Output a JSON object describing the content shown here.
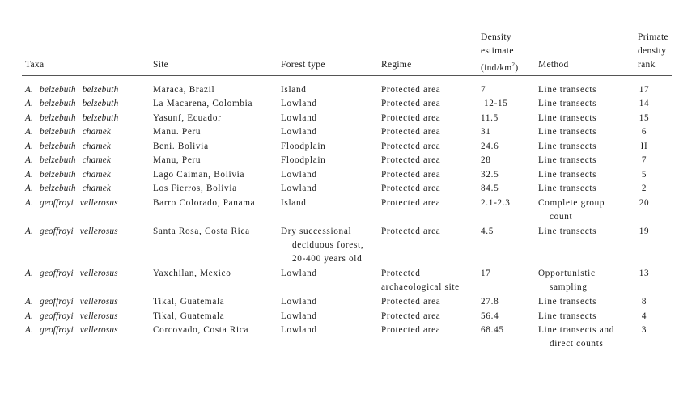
{
  "headers": {
    "taxa": "Taxa",
    "site": "Site",
    "forest_type": "Forest type",
    "regime": "Regime",
    "density_line1": "Density",
    "density_line2": "estimate",
    "density_line3_pre": "(ind/km",
    "density_line3_sup": "2",
    "density_line3_post": ")",
    "method": "Method",
    "rank_line1": "Primate",
    "rank_line2": "density",
    "rank_line3": "rank"
  },
  "rows": [
    {
      "taxa": "A.  belzebuth  belzebuth",
      "site": "Maraca, Brazil",
      "forest": [
        "Island"
      ],
      "regime": [
        "Protected area"
      ],
      "density": "7",
      "method": [
        "Line transects"
      ],
      "rank": "17"
    },
    {
      "taxa": "A.  belzebuth  belzebuth",
      "site": "La Macarena, Colombia",
      "forest": [
        "Lowland"
      ],
      "regime": [
        "Protected area"
      ],
      "density": "12-15",
      "method": [
        "Line transects"
      ],
      "rank": "14"
    },
    {
      "taxa": "A.  belzebuth  belzebuth",
      "site": "Yasunf, Ecuador",
      "forest": [
        "Lowland"
      ],
      "regime": [
        "Protected area"
      ],
      "density": "11.5",
      "method": [
        "Line transects"
      ],
      "rank": "15"
    },
    {
      "taxa": "A.  belzebuth  chamek",
      "site": "Manu. Peru",
      "forest": [
        "Lowland"
      ],
      "regime": [
        "Protected area"
      ],
      "density": "31",
      "method": [
        "Line transects"
      ],
      "rank": "6"
    },
    {
      "taxa": "A.  belzebuth  chamek",
      "site": "Beni. Bolivia",
      "forest": [
        "Floodplain"
      ],
      "regime": [
        "Protected area"
      ],
      "density": "24.6",
      "method": [
        "Line transects"
      ],
      "rank": "II"
    },
    {
      "taxa": "A.  belzebuth  chamek",
      "site": "Manu, Peru",
      "forest": [
        "Floodplain"
      ],
      "regime": [
        "Protected area"
      ],
      "density": "28",
      "method": [
        "Line transects"
      ],
      "rank": "7"
    },
    {
      "taxa": "A.  belzebuth  chamek",
      "site": "Lago Caiman, Bolivia",
      "forest": [
        "Lowland"
      ],
      "regime": [
        "Protected area"
      ],
      "density": "32.5",
      "method": [
        "Line transects"
      ],
      "rank": "5"
    },
    {
      "taxa": "A.  belzebuth  chamek",
      "site": "Los Fierros, Bolivia",
      "forest": [
        "Lowland"
      ],
      "regime": [
        "Protected area"
      ],
      "density": "84.5",
      "method": [
        "Line transects"
      ],
      "rank": "2"
    },
    {
      "taxa": "A.  geoffroyi  vellerosus",
      "site": "Barro Colorado, Panama",
      "forest": [
        "Island"
      ],
      "regime": [
        "Protected area"
      ],
      "density": "2.1-2.3",
      "method": [
        "Complete group",
        "count"
      ],
      "rank": "20"
    },
    {
      "taxa": "A.  geoffroyi  vellerosus",
      "site": "Santa Rosa, Costa Rica",
      "forest": [
        "Dry successional",
        "deciduous forest,",
        "20-400 years old"
      ],
      "regime": [
        "Protected area"
      ],
      "density": "4.5",
      "method": [
        "Line transects"
      ],
      "rank": "19"
    },
    {
      "taxa": "A.  geoffroyi  vellerosus",
      "site": "Yaxchilan, Mexico",
      "forest": [
        "Lowland"
      ],
      "regime": [
        "Protected",
        "archaeological site"
      ],
      "density": "17",
      "method": [
        "Opportunistic",
        "sampling"
      ],
      "rank": "13"
    },
    {
      "taxa": "A.  geoffroyi  vellerosus",
      "site": "Tikal, Guatemala",
      "forest": [
        "Lowland"
      ],
      "regime": [
        "Protected area"
      ],
      "density": "27.8",
      "method": [
        "Line transects"
      ],
      "rank": "8"
    },
    {
      "taxa": "A.  geoffroyi  vellerosus",
      "site": "Tikal, Guatemala",
      "forest": [
        "Lowland"
      ],
      "regime": [
        "Protected area"
      ],
      "density": "56.4",
      "method": [
        "Line transects"
      ],
      "rank": "4"
    },
    {
      "taxa": "A.  geoffroyi  vellerosus",
      "site": "Corcovado, Costa Rica",
      "forest": [
        "Lowland"
      ],
      "regime": [
        "Protected area"
      ],
      "density": "68.45",
      "method": [
        "Line transects and",
        "direct counts"
      ],
      "rank": "3"
    }
  ]
}
